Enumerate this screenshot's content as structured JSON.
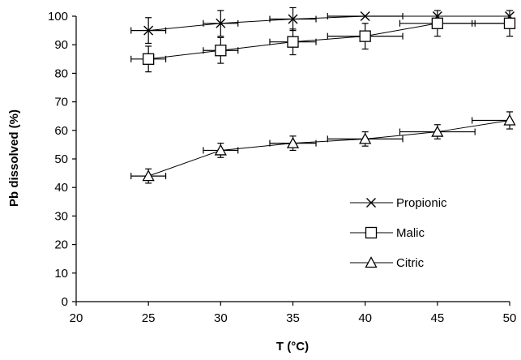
{
  "chart_data": {
    "type": "line",
    "xlabel": "T (°C)",
    "ylabel": "Pb dissolved (%)",
    "xlim": [
      20,
      50
    ],
    "ylim": [
      0,
      100
    ],
    "xticks": [
      "20",
      "25",
      "30",
      "35",
      "40",
      "45",
      "50"
    ],
    "yticks": [
      "0",
      "10",
      "20",
      "30",
      "40",
      "50",
      "60",
      "70",
      "80",
      "90",
      "100"
    ],
    "grid": false,
    "legend_position": "lower-right",
    "x": [
      25,
      30,
      35,
      40,
      45,
      50
    ],
    "series": [
      {
        "name": "Propionic",
        "marker": "x",
        "values": [
          95,
          97.5,
          99,
          100,
          100,
          100
        ],
        "yerr": [
          4.5,
          4.5,
          4,
          0,
          0,
          0
        ],
        "xerr": [
          1.2,
          1.2,
          1.6,
          2.6,
          0,
          0
        ]
      },
      {
        "name": "Malic",
        "marker": "square",
        "values": [
          85,
          88,
          91,
          93,
          97.5,
          97.5
        ],
        "yerr": [
          4.5,
          4.5,
          4.5,
          4.5,
          4.5,
          4.5
        ],
        "xerr": [
          1.2,
          1.2,
          1.6,
          2.6,
          2.6,
          2.6
        ]
      },
      {
        "name": "Citric",
        "marker": "triangle",
        "values": [
          44,
          53,
          55.5,
          57,
          59.5,
          63.5
        ],
        "yerr": [
          2.5,
          2.5,
          2.5,
          2.5,
          2.5,
          3
        ],
        "xerr": [
          1.2,
          1.2,
          1.6,
          2.6,
          2.6,
          2.6
        ]
      }
    ]
  }
}
